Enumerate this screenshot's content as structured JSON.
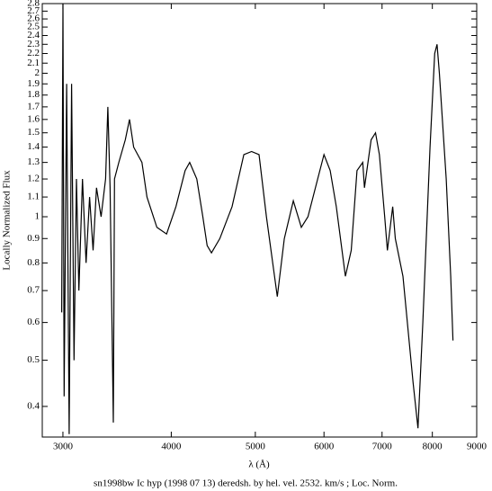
{
  "chart_data": {
    "type": "line",
    "caption": "sn1998bw Ic hyp (1998 07 13) deredsh. by hel. vel.  2532. km/s ;  Loc. Norm.",
    "x_label": "λ (Å)",
    "y_label": "Locally Normalized Flux",
    "x_log": true,
    "y_log": true,
    "xlim": [
      2840,
      9000
    ],
    "ylim": [
      0.345,
      2.8
    ],
    "xticks": [
      3000,
      4000,
      5000,
      6000,
      7000,
      8000,
      9000
    ],
    "yticks": [
      0.4,
      0.5,
      0.6,
      0.7,
      0.8,
      0.9,
      1,
      1.1,
      1.2,
      1.3,
      1.4,
      1.5,
      1.6,
      1.7,
      1.8,
      1.9,
      2,
      2.1,
      2.2,
      2.3,
      2.4,
      2.5,
      2.6,
      2.7,
      2.8
    ],
    "series": [
      {
        "color": "#000000",
        "x": [
          2990,
          3000,
          3010,
          3030,
          3050,
          3070,
          3090,
          3110,
          3130,
          3160,
          3190,
          3220,
          3250,
          3280,
          3320,
          3360,
          3380,
          3400,
          3430,
          3440,
          3480,
          3540,
          3580,
          3620,
          3700,
          3750,
          3850,
          3950,
          4050,
          4150,
          4200,
          4280,
          4350,
          4400,
          4450,
          4550,
          4700,
          4850,
          4950,
          5050,
          5150,
          5300,
          5400,
          5530,
          5650,
          5750,
          5900,
          6000,
          6100,
          6200,
          6350,
          6450,
          6550,
          6650,
          6680,
          6800,
          6880,
          6950,
          7050,
          7100,
          7200,
          7250,
          7400,
          7600,
          7700,
          7800,
          7950,
          8050,
          8100,
          8150,
          8300,
          8400,
          8450
        ],
        "values": [
          0.63,
          2.8,
          0.42,
          1.9,
          0.35,
          1.9,
          0.5,
          1.2,
          0.7,
          1.2,
          0.8,
          1.1,
          0.85,
          1.15,
          1.0,
          1.2,
          1.7,
          1.15,
          0.37,
          1.2,
          1.3,
          1.45,
          1.6,
          1.4,
          1.3,
          1.1,
          0.95,
          0.92,
          1.05,
          1.25,
          1.3,
          1.2,
          1.0,
          0.87,
          0.84,
          0.9,
          1.05,
          1.35,
          1.37,
          1.35,
          1.0,
          0.68,
          0.9,
          1.08,
          0.95,
          1.0,
          1.2,
          1.35,
          1.25,
          1.05,
          0.75,
          0.85,
          1.25,
          1.3,
          1.15,
          1.45,
          1.5,
          1.35,
          1.0,
          0.85,
          1.05,
          0.9,
          0.75,
          0.45,
          0.36,
          0.6,
          1.4,
          2.2,
          2.3,
          2.0,
          1.2,
          0.75,
          0.55
        ]
      }
    ]
  }
}
